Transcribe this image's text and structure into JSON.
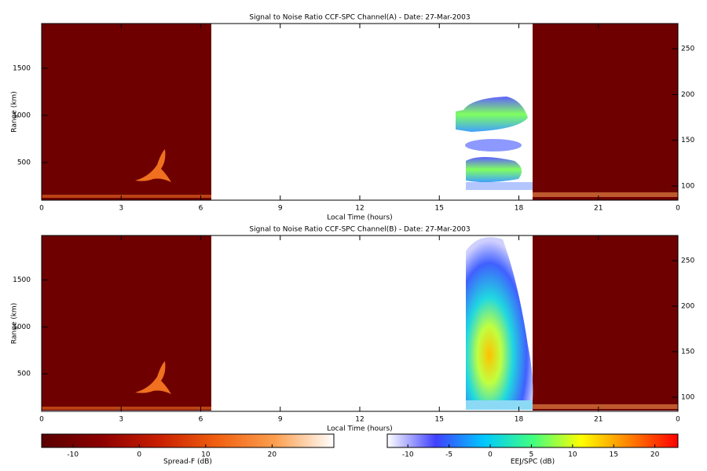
{
  "chart_data": [
    {
      "type": "heatmap",
      "title": "Signal to Noise Ratio CCF-SPC Channel(A) - Date: 27-Mar-2003",
      "xlabel": "Local Time (hours)",
      "ylabel": "Range (km)",
      "xlim": [
        0,
        24
      ],
      "xticks": [
        0,
        3,
        6,
        9,
        12,
        15,
        18,
        21,
        {
          "value": 24,
          "label": "0"
        }
      ],
      "ylim": [
        100,
        1975
      ],
      "yticks": [
        500,
        1000,
        1500
      ],
      "y2lim": [
        84.5,
        277.6
      ],
      "y2ticks": [
        100,
        150,
        200,
        250
      ]
    },
    {
      "type": "heatmap",
      "title": "Signal to Noise Ratio CCF-SPC Channel(B) - Date: 27-Mar-2003",
      "xlabel": "Local Time (hours)",
      "ylabel": "Range (km)",
      "xlim": [
        0,
        24
      ],
      "xticks": [
        0,
        3,
        6,
        9,
        12,
        15,
        18,
        21,
        {
          "value": 24,
          "label": "0"
        }
      ],
      "ylim": [
        100,
        1975
      ],
      "yticks": [
        500,
        1000,
        1500
      ],
      "y2lim": [
        84.5,
        277.6
      ],
      "y2ticks": [
        100,
        150,
        200,
        250
      ]
    },
    {
      "type": "colorbar",
      "label": "Spread-F (dB)",
      "xlim": [
        -14.7,
        29.3
      ],
      "xticks": [
        -10,
        0,
        10,
        20
      ],
      "colormap": [
        "#5a0000",
        "#8b0000",
        "#c81e00",
        "#f06010",
        "#fba050",
        "#ffffff"
      ]
    },
    {
      "type": "colorbar",
      "label": "EEJ/SPC (dB)",
      "xlim": [
        -12.5,
        22.8
      ],
      "xticks": [
        -10,
        -5,
        0,
        5,
        10,
        15,
        20
      ],
      "colormap": [
        "#ffffff",
        "#4040ff",
        "#00c8ff",
        "#40ff80",
        "#ffff00",
        "#ff8000",
        "#ff0000"
      ]
    }
  ]
}
